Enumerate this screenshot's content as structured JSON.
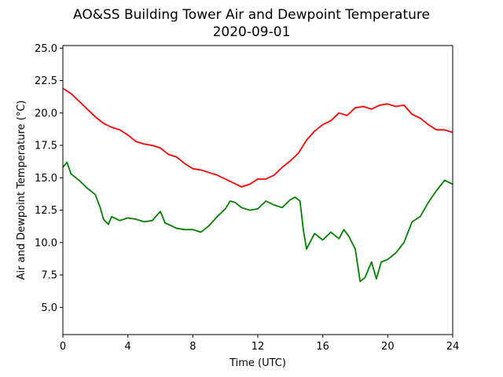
{
  "chart_data": {
    "type": "line",
    "title": "AO&SS Building Tower Air and Dewpoint Temperature",
    "subtitle": "2020-09-01",
    "xlabel": "Time (UTC)",
    "ylabel": "Air and Dewpoint Temperature (°C)",
    "xlim": [
      0,
      24
    ],
    "ylim": [
      2.9,
      25.2
    ],
    "xticks": [
      0,
      4,
      8,
      12,
      16,
      20,
      24
    ],
    "yticks": [
      5.0,
      7.5,
      10.0,
      12.5,
      15.0,
      17.5,
      20.0,
      22.5,
      25.0
    ],
    "grid": false,
    "series": [
      {
        "color": "#ff0000",
        "x": [
          0,
          0.5,
          1,
          1.5,
          2,
          2.5,
          3,
          3.5,
          4,
          4.5,
          5,
          5.5,
          6,
          6.5,
          7,
          7.5,
          8,
          8.5,
          9,
          9.5,
          10,
          10.5,
          11,
          11.5,
          12,
          12.5,
          13,
          13.5,
          14,
          14.5,
          15,
          15.5,
          16,
          16.5,
          17,
          17.5,
          18,
          18.5,
          19,
          19.5,
          20,
          20.5,
          21,
          21.5,
          22,
          22.5,
          23,
          23.5,
          24
        ],
        "y": [
          21.9,
          21.5,
          20.9,
          20.3,
          19.7,
          19.2,
          18.9,
          18.7,
          18.3,
          17.8,
          17.6,
          17.5,
          17.3,
          16.8,
          16.6,
          16.1,
          15.7,
          15.6,
          15.4,
          15.2,
          14.9,
          14.6,
          14.3,
          14.5,
          14.9,
          14.9,
          15.2,
          15.8,
          16.3,
          16.9,
          17.9,
          18.6,
          19.1,
          19.4,
          20.0,
          19.8,
          20.4,
          20.5,
          20.3,
          20.6,
          20.7,
          20.5,
          20.6,
          19.9,
          19.6,
          19.1,
          18.7,
          18.7,
          18.5
        ]
      },
      {
        "color": "#008000",
        "x": [
          0,
          0.25,
          0.5,
          1,
          1.5,
          2,
          2.3,
          2.5,
          2.8,
          3,
          3.5,
          4,
          4.5,
          5,
          5.5,
          6,
          6.3,
          6.5,
          7,
          7.5,
          8,
          8.5,
          9,
          9.5,
          10,
          10.3,
          10.6,
          11,
          11.5,
          12,
          12.5,
          13,
          13.5,
          14,
          14.3,
          14.6,
          14.8,
          15,
          15.5,
          16,
          16.5,
          17,
          17.3,
          17.6,
          18,
          18.3,
          18.6,
          19,
          19.3,
          19.6,
          20,
          20.5,
          21,
          21.5,
          22,
          22.5,
          23,
          23.5,
          24
        ],
        "y": [
          15.8,
          16.2,
          15.3,
          14.8,
          14.2,
          13.7,
          12.7,
          11.8,
          11.4,
          12.0,
          11.7,
          11.9,
          11.8,
          11.6,
          11.7,
          12.4,
          11.5,
          11.4,
          11.1,
          11.0,
          11.0,
          10.8,
          11.3,
          12.0,
          12.6,
          13.2,
          13.1,
          12.7,
          12.5,
          12.6,
          13.2,
          12.9,
          12.7,
          13.3,
          13.5,
          13.2,
          11.0,
          9.5,
          10.7,
          10.2,
          10.8,
          10.3,
          11.0,
          10.5,
          9.5,
          7.0,
          7.3,
          8.5,
          7.2,
          8.5,
          8.7,
          9.2,
          10.0,
          11.6,
          12.0,
          13.1,
          14.0,
          14.8,
          14.5
        ]
      }
    ]
  }
}
